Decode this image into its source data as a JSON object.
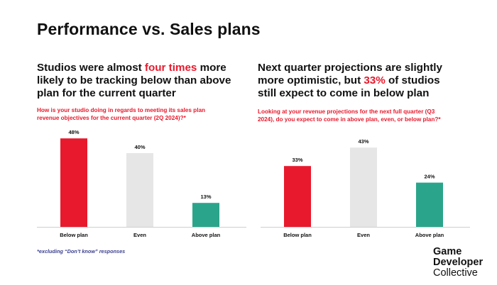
{
  "title": "Performance vs. Sales plans",
  "left": {
    "headline_pre": "Studios were almost ",
    "headline_hl": "four times",
    "headline_l1_post": " more",
    "headline_l2": "likely to be tracking below than above",
    "headline_l3": "plan for the current quarter",
    "question_l1": "How is your studio doing in regards to meeting its sales plan",
    "question_l2": "revenue objectives for the current quarter (2Q 2024)?*"
  },
  "right": {
    "headline_l1": "Next quarter projections are slightly",
    "headline_l2_pre": "more optimistic, but ",
    "headline_hl": "33%",
    "headline_l2_post": " of studios",
    "headline_l3": "still expect to come in below plan",
    "question_l1": "Looking at your revenue projections for the next full quarter (Q3",
    "question_l2": "2024), do you expect to come in above plan, even, or below plan?*"
  },
  "footnote": "*excluding “Don’t know” responses",
  "logo": {
    "line1": "Game",
    "line2": "Developer",
    "line3": "Collective"
  },
  "colors": {
    "red": "#e8192c",
    "grey": "#e6e6e6",
    "teal": "#2aa58b"
  },
  "chart_data": [
    {
      "type": "bar",
      "categories": [
        "Below plan",
        "Even",
        "Above plan"
      ],
      "values": [
        48,
        40,
        13
      ],
      "value_suffix": "%",
      "bar_colors": [
        "#e8192c",
        "#e6e6e6",
        "#2aa58b"
      ],
      "ylim": [
        0,
        50
      ],
      "grid": false,
      "legend": "none"
    },
    {
      "type": "bar",
      "categories": [
        "Below plan",
        "Even",
        "Above plan"
      ],
      "values": [
        33,
        43,
        24
      ],
      "value_suffix": "%",
      "bar_colors": [
        "#e8192c",
        "#e6e6e6",
        "#2aa58b"
      ],
      "ylim": [
        0,
        50
      ],
      "grid": false,
      "legend": "none"
    }
  ]
}
